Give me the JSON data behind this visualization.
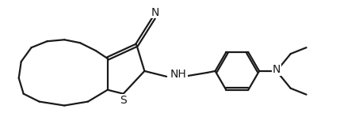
{
  "background_color": "#ffffff",
  "line_color": "#1a1a1a",
  "line_width": 1.6,
  "font_size": 10,
  "figsize": [
    4.48,
    1.62
  ],
  "dpi": 100,
  "xlim": [
    0,
    4.48
  ],
  "ylim": [
    0,
    1.62
  ]
}
